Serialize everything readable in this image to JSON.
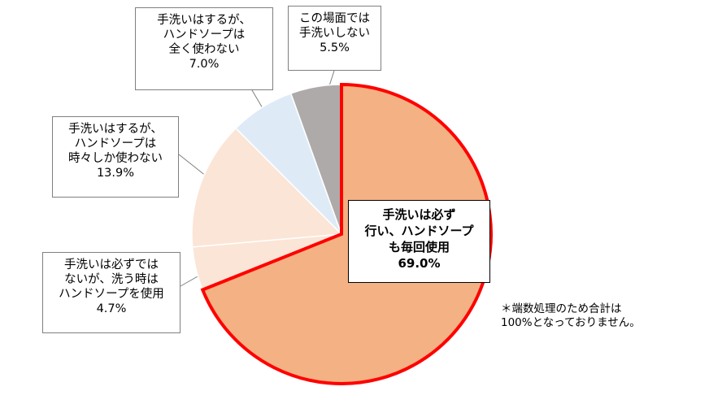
{
  "chart_data": {
    "type": "pie",
    "start": "top",
    "direction": "clockwise",
    "slices": [
      {
        "label_lines": [
          "手洗いは必ず",
          "行い、ハンドソープ",
          "も毎回使用"
        ],
        "value": 69.0,
        "pct_label": "69.0%",
        "color": "#f4b183",
        "highlight": "#ff0000"
      },
      {
        "label_lines": [
          "手洗いは必ずでは",
          "ないが、洗う時は",
          "ハンドソープを使用"
        ],
        "value": 4.7,
        "pct_label": "4.7%",
        "color": "#fbe5d6"
      },
      {
        "label_lines": [
          "手洗いはするが、",
          "ハンドソープは",
          "時々しか使わない"
        ],
        "value": 13.9,
        "pct_label": "13.9%",
        "color": "#fbe5d6"
      },
      {
        "label_lines": [
          "手洗いはするが、",
          "ハンドソープは",
          "全く使わない"
        ],
        "value": 7.0,
        "pct_label": "7.0%",
        "color": "#deebf7"
      },
      {
        "label_lines": [
          "この場面では",
          "手洗いしない"
        ],
        "value": 5.5,
        "pct_label": "5.5%",
        "color": "#aeaaaa"
      }
    ]
  },
  "note": {
    "line1": "＊端数処理のため合計は",
    "line2": "100%となっておりません。"
  }
}
